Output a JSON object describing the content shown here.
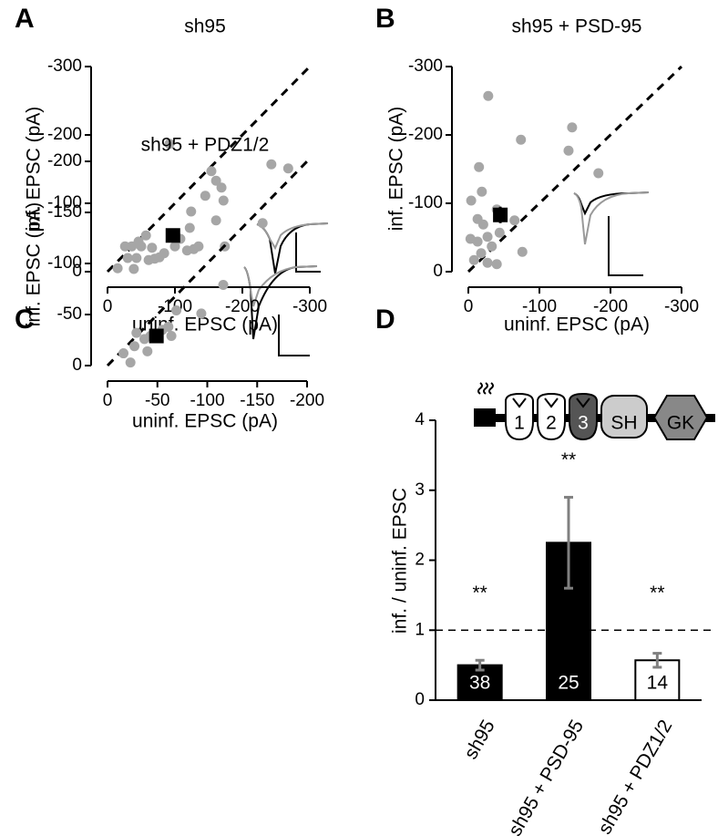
{
  "chart_data": [
    {
      "type": "scatter",
      "panel": "A",
      "title": "sh95",
      "xlabel": "uninf. EPSC (pA)",
      "ylabel": "inf. EPSC (pA)",
      "xlim": [
        0,
        -300
      ],
      "xticks": [
        0,
        -100,
        -200,
        -300
      ],
      "ylim": [
        0,
        -300
      ],
      "yticks": [
        0,
        -100,
        -200,
        -300
      ],
      "color": "#a6a6a6",
      "diagonal": true,
      "x": [
        -15,
        -26,
        -30,
        -39,
        -43,
        -36,
        -50,
        -57,
        -61,
        -70,
        -77,
        -84,
        -92,
        -100,
        -108,
        -118,
        -122,
        -128,
        -124,
        -135,
        -145,
        -154,
        -161,
        -172,
        -174,
        -169,
        -161,
        -243,
        -268,
        -230,
        -66,
        -46
      ],
      "y": [
        -5,
        -37,
        -20,
        -4,
        -20,
        -37,
        -37,
        -53,
        -17,
        -19,
        -21,
        -27,
        -187,
        -37,
        -48,
        -31,
        -64,
        -33,
        -88,
        -37,
        -111,
        -147,
        -75,
        -104,
        -37,
        -123,
        -133,
        -157,
        -151,
        -71,
        -35,
        -44
      ],
      "mean": {
        "x": -97,
        "y": -53,
        "xerr": 8,
        "yerr": 5
      }
    },
    {
      "type": "scatter",
      "panel": "B",
      "title": "sh95 + PSD-95",
      "xlabel": "uninf. EPSC (pA)",
      "ylabel": "inf. EPSC (pA)",
      "xlim": [
        0,
        -300
      ],
      "xticks": [
        0,
        -100,
        -200,
        -300
      ],
      "ylim": [
        0,
        -300
      ],
      "yticks": [
        0,
        -100,
        -200,
        -300
      ],
      "color": "#a6a6a6",
      "diagonal": true,
      "x": [
        -28,
        -15,
        -4,
        -19,
        -74,
        -146,
        -141,
        -183,
        -3,
        -13,
        -27,
        -33,
        -18,
        -8,
        -27,
        -40,
        -21,
        -44,
        -65,
        -76,
        -40,
        -13
      ],
      "y": [
        -257,
        -153,
        -104,
        -117,
        -193,
        -211,
        -177,
        -144,
        -48,
        -44,
        -51,
        -37,
        -27,
        -17,
        -13,
        -11,
        -69,
        -57,
        -75,
        -29,
        -91,
        -77
      ],
      "mean": {
        "x": -45,
        "y": -83,
        "xerr": 5,
        "yerr": 12
      }
    },
    {
      "type": "scatter",
      "panel": "C",
      "title": "sh95 + PDZ1/2",
      "xlabel": "uninf. EPSC (pA)",
      "ylabel": "inf. EPSC (pA)",
      "xlim": [
        0,
        -200
      ],
      "xticks": [
        0,
        -50,
        -100,
        -150,
        -200
      ],
      "ylim": [
        0,
        -200
      ],
      "yticks": [
        0,
        -50,
        -100,
        -150,
        -200
      ],
      "color": "#a6a6a6",
      "diagonal": true,
      "x": [
        -16,
        -23,
        -27,
        -29,
        -37,
        -40,
        -43,
        -55,
        -64,
        -61,
        -69,
        -94,
        -116
      ],
      "y": [
        -12,
        -3,
        -19,
        -32,
        -26,
        -14,
        -29,
        -35,
        -29,
        -38,
        -54,
        -51,
        -79
      ],
      "mean": {
        "x": -49,
        "y": -29,
        "xerr": 5,
        "yerr": 4
      }
    },
    {
      "type": "bar",
      "panel": "D",
      "ylabel": "inf. / uninf. EPSC",
      "categories": [
        "sh95",
        "sh95 + PSD-95",
        "sh95 + PDZ1/2"
      ],
      "values": [
        0.5,
        2.25,
        0.57
      ],
      "errors": [
        0.07,
        0.65,
        0.1
      ],
      "colors": [
        "#000000",
        "#000000",
        "#ffffff"
      ],
      "error_color": "#808080",
      "n_labels": [
        "38",
        "25",
        "14"
      ],
      "annotations": [
        "**",
        "**",
        "**"
      ],
      "reference_line": 1,
      "ylim": [
        0,
        4
      ],
      "yticks": [
        0,
        1,
        2,
        3,
        4
      ],
      "domain_labels": [
        "1",
        "2",
        "3",
        "SH",
        "GK"
      ]
    }
  ]
}
